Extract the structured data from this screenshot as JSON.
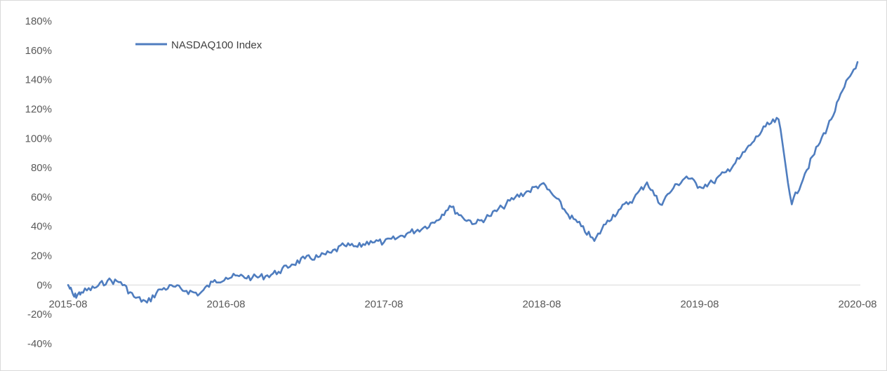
{
  "chart_data": {
    "type": "line",
    "title": "",
    "xlabel": "",
    "ylabel": "",
    "ylim": [
      -0.4,
      1.8
    ],
    "xlim": [
      "2015-08",
      "2020-08"
    ],
    "y_ticks": [
      "180%",
      "160%",
      "140%",
      "120%",
      "100%",
      "80%",
      "60%",
      "40%",
      "20%",
      "0%",
      "-20%",
      "-40%"
    ],
    "x_ticks": [
      "2015-08",
      "2016-08",
      "2017-08",
      "2018-08",
      "2019-08",
      "2020-08"
    ],
    "grid": false,
    "legend_position": "top-left",
    "colors": {
      "series": "#4f7dbf",
      "axis": "#d9d9d9",
      "text": "#595959"
    },
    "series": [
      {
        "name": "NASDAQ100 Index",
        "x": [
          "2015-08",
          "2015-08-15",
          "2015-09",
          "2015-10",
          "2015-11",
          "2015-12",
          "2016-01",
          "2016-02",
          "2016-03",
          "2016-04",
          "2016-05",
          "2016-06",
          "2016-07",
          "2016-08",
          "2016-09",
          "2016-10",
          "2016-11",
          "2016-12",
          "2017-01",
          "2017-02",
          "2017-03",
          "2017-04",
          "2017-05",
          "2017-06",
          "2017-07",
          "2017-08",
          "2017-09",
          "2017-10",
          "2017-11",
          "2017-12",
          "2018-01",
          "2018-02",
          "2018-03",
          "2018-04",
          "2018-05",
          "2018-06",
          "2018-07",
          "2018-08",
          "2018-09",
          "2018-10",
          "2018-11",
          "2018-12",
          "2019-01",
          "2019-02",
          "2019-03",
          "2019-04",
          "2019-05",
          "2019-06",
          "2019-07",
          "2019-08",
          "2019-09",
          "2019-10",
          "2019-11",
          "2019-12",
          "2020-01",
          "2020-02",
          "2020-03",
          "2020-04",
          "2020-05",
          "2020-06",
          "2020-07",
          "2020-08"
        ],
        "values": [
          0.0,
          -0.08,
          -0.05,
          -0.02,
          0.03,
          0.02,
          -0.08,
          -0.12,
          -0.03,
          -0.01,
          -0.04,
          -0.06,
          0.02,
          0.05,
          0.06,
          0.05,
          0.06,
          0.09,
          0.14,
          0.18,
          0.19,
          0.22,
          0.27,
          0.26,
          0.3,
          0.29,
          0.32,
          0.36,
          0.39,
          0.44,
          0.54,
          0.46,
          0.42,
          0.47,
          0.53,
          0.6,
          0.64,
          0.69,
          0.6,
          0.48,
          0.4,
          0.3,
          0.44,
          0.52,
          0.59,
          0.7,
          0.55,
          0.66,
          0.74,
          0.67,
          0.7,
          0.77,
          0.86,
          0.97,
          1.08,
          1.13,
          0.55,
          0.76,
          0.95,
          1.13,
          1.35,
          1.52
        ]
      }
    ]
  }
}
